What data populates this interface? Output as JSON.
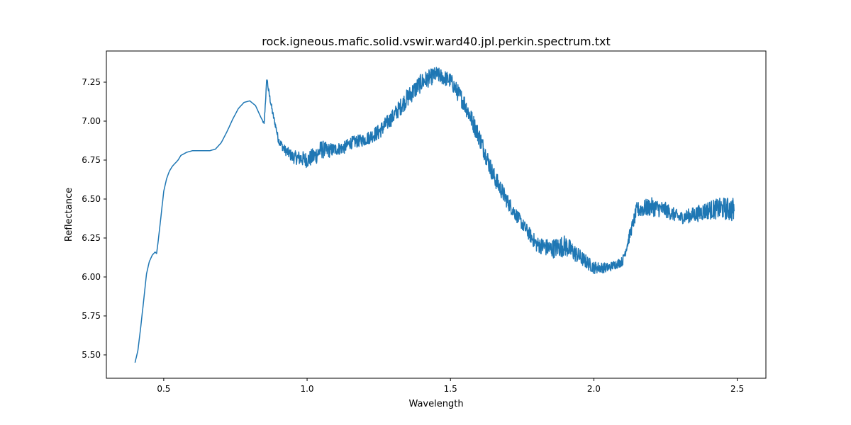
{
  "chart_data": {
    "type": "line",
    "title": "rock.igneous.mafic.solid.vswir.ward40.jpl.perkin.spectrum.txt",
    "xlabel": "Wavelength",
    "ylabel": "Reflectance",
    "xlim": [
      0.3,
      2.6
    ],
    "ylim": [
      5.35,
      7.45
    ],
    "x_ticks": [
      {
        "value": 0.5,
        "label": "0.5"
      },
      {
        "value": 1.0,
        "label": "1.0"
      },
      {
        "value": 1.5,
        "label": "1.5"
      },
      {
        "value": 2.0,
        "label": "2.0"
      },
      {
        "value": 2.5,
        "label": "2.5"
      }
    ],
    "y_ticks": [
      {
        "value": 5.5,
        "label": "5.50"
      },
      {
        "value": 5.75,
        "label": "5.75"
      },
      {
        "value": 6.0,
        "label": "6.00"
      },
      {
        "value": 6.25,
        "label": "6.25"
      },
      {
        "value": 6.5,
        "label": "6.50"
      },
      {
        "value": 6.75,
        "label": "6.75"
      },
      {
        "value": 7.0,
        "label": "7.00"
      },
      {
        "value": 7.25,
        "label": "7.25"
      }
    ],
    "grid": false,
    "line_color": "#1f77b4",
    "series": [
      {
        "x": [
          0.4,
          0.41,
          0.42,
          0.43,
          0.44,
          0.45,
          0.46,
          0.47,
          0.475,
          0.48,
          0.49,
          0.5,
          0.51,
          0.52,
          0.53,
          0.54,
          0.55,
          0.56,
          0.57,
          0.58,
          0.6,
          0.63,
          0.66,
          0.68,
          0.7,
          0.72,
          0.74,
          0.76,
          0.78,
          0.8,
          0.82,
          0.84,
          0.85,
          0.86,
          0.865,
          0.87,
          0.88,
          0.89,
          0.9,
          0.92,
          0.95,
          0.98,
          1.0,
          1.03,
          1.05,
          1.07,
          1.1,
          1.13,
          1.15,
          1.2,
          1.25,
          1.3,
          1.35,
          1.4,
          1.45,
          1.5,
          1.55,
          1.6,
          1.65,
          1.7,
          1.75,
          1.8,
          1.85,
          1.9,
          1.95,
          2.0,
          2.05,
          2.1,
          2.13,
          2.15,
          2.2,
          2.25,
          2.3,
          2.35,
          2.4,
          2.45,
          2.49
        ],
        "y": [
          5.45,
          5.53,
          5.68,
          5.85,
          6.02,
          6.1,
          6.14,
          6.16,
          6.15,
          6.22,
          6.38,
          6.55,
          6.63,
          6.68,
          6.71,
          6.73,
          6.75,
          6.78,
          6.79,
          6.8,
          6.81,
          6.81,
          6.81,
          6.82,
          6.86,
          6.93,
          7.01,
          7.08,
          7.12,
          7.13,
          7.1,
          7.02,
          6.98,
          7.28,
          7.2,
          7.15,
          7.05,
          6.97,
          6.88,
          6.82,
          6.77,
          6.76,
          6.75,
          6.78,
          6.82,
          6.81,
          6.82,
          6.83,
          6.86,
          6.88,
          6.93,
          7.03,
          7.15,
          7.25,
          7.3,
          7.26,
          7.11,
          6.9,
          6.65,
          6.48,
          6.34,
          6.21,
          6.18,
          6.2,
          6.13,
          6.06,
          6.06,
          6.1,
          6.3,
          6.43,
          6.45,
          6.43,
          6.38,
          6.4,
          6.43,
          6.44,
          6.43
        ],
        "noise": [
          0,
          0,
          0,
          0,
          0,
          0,
          0,
          0,
          0,
          0,
          0,
          0,
          0,
          0,
          0,
          0,
          0,
          0,
          0,
          0,
          0,
          0,
          0,
          0,
          0,
          0,
          0,
          0,
          0,
          0,
          0,
          0,
          0.01,
          0.02,
          0.02,
          0.02,
          0.02,
          0.02,
          0.025,
          0.03,
          0.04,
          0.05,
          0.05,
          0.06,
          0.06,
          0.05,
          0.04,
          0.04,
          0.04,
          0.04,
          0.05,
          0.05,
          0.06,
          0.06,
          0.05,
          0.05,
          0.06,
          0.06,
          0.06,
          0.05,
          0.04,
          0.05,
          0.06,
          0.07,
          0.05,
          0.04,
          0.03,
          0.03,
          0.04,
          0.05,
          0.06,
          0.05,
          0.04,
          0.05,
          0.06,
          0.07,
          0.08
        ]
      }
    ]
  }
}
